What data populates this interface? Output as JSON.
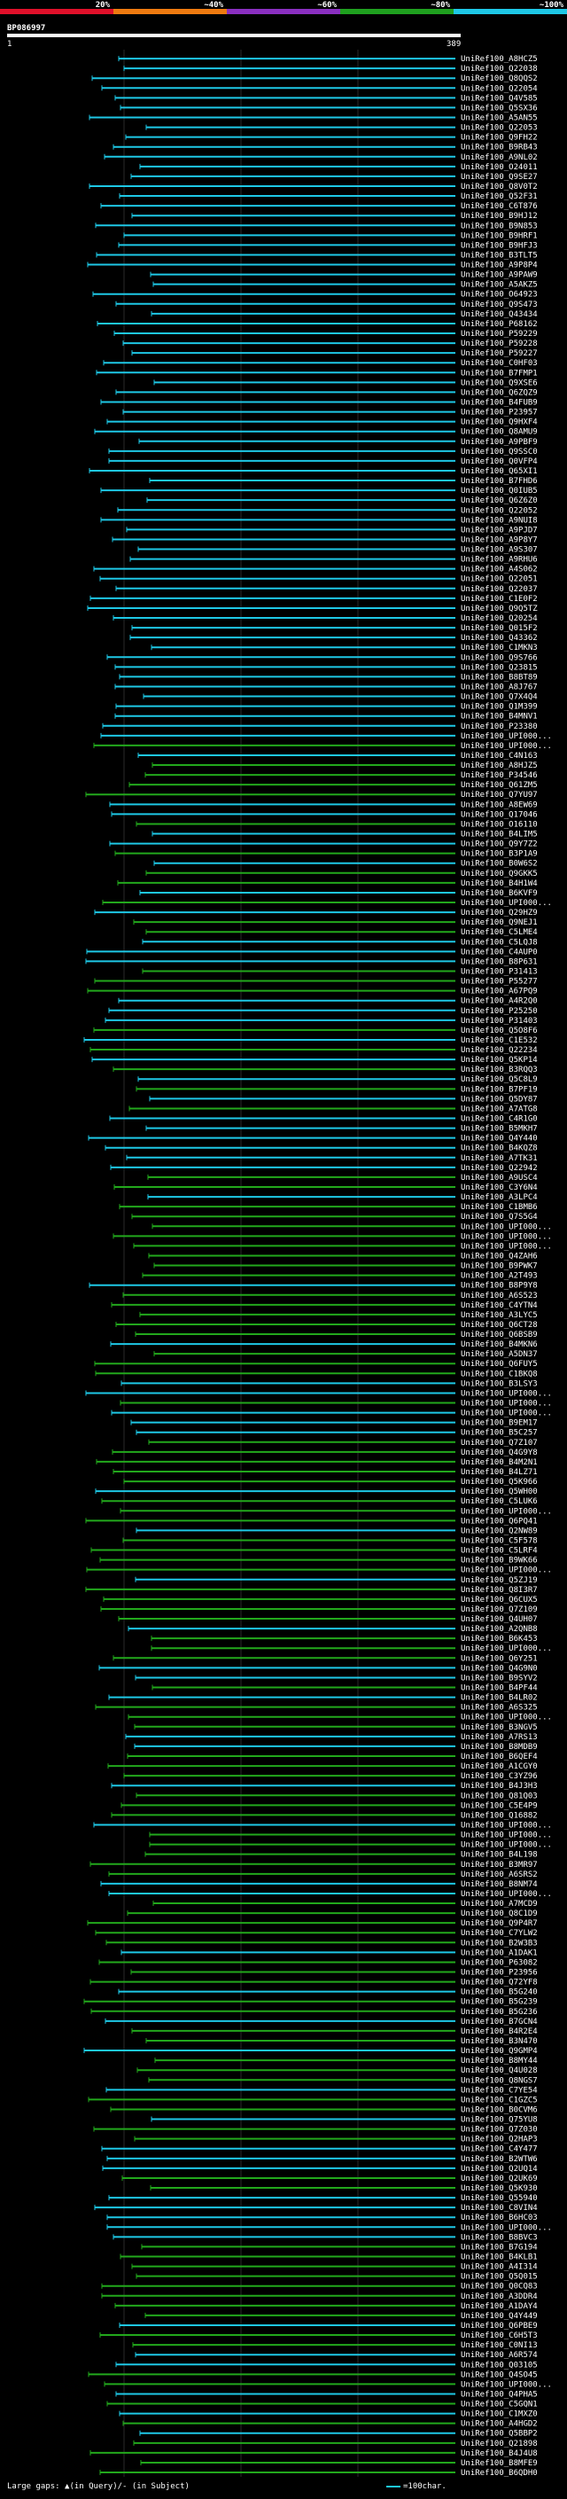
{
  "chart_data": {
    "type": "alignment-overview",
    "scale_labels": [
      "20%",
      "~40%",
      "~60%",
      "~80%",
      "~100%"
    ],
    "scale_colors": [
      "#e0102a",
      "#ee7a10",
      "#8a2fc0",
      "#1fa01f",
      "#1ec8e6"
    ],
    "query_id": "BP086997",
    "query_start": "1",
    "query_end": "389",
    "gap_legend": "Large gaps: ▲(in Query)/- (in Subject)",
    "length_legend": "=100char.",
    "hits": [
      "UniRef100_A8HCZ5",
      "UniRef100_Q22038",
      "UniRef100_Q8QQS2",
      "UniRef100_Q22054",
      "UniRef100_Q4V585",
      "UniRef100_Q5SX36",
      "UniRef100_A5AN55",
      "UniRef100_Q22053",
      "UniRef100_Q9FH22",
      "UniRef100_B9RB43",
      "UniRef100_A9NL02",
      "UniRef100_O24011",
      "UniRef100_Q9SE27",
      "UniRef100_Q8V0T2",
      "UniRef100_Q52F31",
      "UniRef100_C6T876",
      "UniRef100_B9HJ12",
      "UniRef100_B9N853",
      "UniRef100_B9HRF1",
      "UniRef100_B9HFJ3",
      "UniRef100_B3TLT5",
      "UniRef100_A9P8P4",
      "UniRef100_A9PAW9",
      "UniRef100_A5AKZ5",
      "UniRef100_O64923",
      "UniRef100_Q9S473",
      "UniRef100_Q43434",
      "UniRef100_P68162",
      "UniRef100_P59229",
      "UniRef100_P59228",
      "UniRef100_P59227",
      "UniRef100_C0HF03",
      "UniRef100_B7FMP1",
      "UniRef100_Q9XSE6",
      "UniRef100_Q6ZQZ9",
      "UniRef100_B4FUB9",
      "UniRef100_P23957",
      "UniRef100_Q9HXF4",
      "UniRef100_Q8AMU9",
      "UniRef100_A9PBF9",
      "UniRef100_Q9SSC0",
      "UniRef100_Q0VFP4",
      "UniRef100_Q65XI1",
      "UniRef100_B7FHD6",
      "UniRef100_Q0IUB5",
      "UniRef100_Q6Z6Z0",
      "UniRef100_Q22052",
      "UniRef100_A9NUI8",
      "UniRef100_A9PJD7",
      "UniRef100_A9P8Y7",
      "UniRef100_A9S307",
      "UniRef100_A9RHU6",
      "UniRef100_A4S062",
      "UniRef100_Q22051",
      "UniRef100_Q22037",
      "UniRef100_C1E0F2",
      "UniRef100_Q9Q5TZ",
      "UniRef100_Q20254",
      "UniRef100_Q015F2",
      "UniRef100_Q43362",
      "UniRef100_C1MKN3",
      "UniRef100_Q9S766",
      "UniRef100_Q23815",
      "UniRef100_B8BT89",
      "UniRef100_A8J767",
      "UniRef100_Q7X4Q4",
      "UniRef100_Q1M399",
      "UniRef100_B4MNV1",
      "UniRef100_P23380",
      "UniRef100_UPI000...",
      "UniRef100_UPI000...",
      "UniRef100_C4N163",
      "UniRef100_A8HJZ5",
      "UniRef100_P34546",
      "UniRef100_Q61ZM5",
      "UniRef100_Q7YU97",
      "UniRef100_A8EW69",
      "UniRef100_Q17046",
      "UniRef100_O16110",
      "UniRef100_B4LIM5",
      "UniRef100_Q9Y7Z2",
      "UniRef100_B3P1A9",
      "UniRef100_B0W6S2",
      "UniRef100_Q9GKK5",
      "UniRef100_B4H1W4",
      "UniRef100_B6KVF9",
      "UniRef100_UPI000...",
      "UniRef100_Q29HZ9",
      "UniRef100_Q9NEJ1",
      "UniRef100_C5LME4",
      "UniRef100_C5LQJ8",
      "UniRef100_C4AUP0",
      "UniRef100_B8P631",
      "UniRef100_P31413",
      "UniRef100_P55277",
      "UniRef100_A67PQ9",
      "UniRef100_A4R2Q0",
      "UniRef100_P25250",
      "UniRef100_P31403",
      "UniRef100_Q5O8F6",
      "UniRef100_C1E532",
      "UniRef100_Q22234",
      "UniRef100_Q5KP14",
      "UniRef100_B3RQQ3",
      "UniRef100_Q5C8L9",
      "UniRef100_B7PF19",
      "UniRef100_Q5DY87",
      "UniRef100_A7ATG8",
      "UniRef100_C4R1G0",
      "UniRef100_B5MKH7",
      "UniRef100_Q4Y440",
      "UniRef100_B4KQZ8",
      "UniRef100_A7TK31",
      "UniRef100_Q22942",
      "UniRef100_A9USC4",
      "UniRef100_C3Y6N4",
      "UniRef100_A3LPC4",
      "UniRef100_C1BMB6",
      "UniRef100_Q7S5G4",
      "UniRef100_UPI000...",
      "UniRef100_UPI000...",
      "UniRef100_UPI000...",
      "UniRef100_Q4ZAH6",
      "UniRef100_B9PWK7",
      "UniRef100_A2T493",
      "UniRef100_B8P9Y8",
      "UniRef100_A6S523",
      "UniRef100_C4YTN4",
      "UniRef100_A3LYC5",
      "UniRef100_Q6CT28",
      "UniRef100_Q6BSB9",
      "UniRef100_B4MKN6",
      "UniRef100_A5DN37",
      "UniRef100_Q6FUY5",
      "UniRef100_C1BKQ8",
      "UniRef100_B3LSY3",
      "UniRef100_UPI000...",
      "UniRef100_UPI000...",
      "UniRef100_UPI000...",
      "UniRef100_B9EM17",
      "UniRef100_B5C257",
      "UniRef100_Q7Z107",
      "UniRef100_Q4G9Y8",
      "UniRef100_B4M2N1",
      "UniRef100_B4LZ71",
      "UniRef100_Q5K966",
      "UniRef100_Q5WH00",
      "UniRef100_C5LUK6",
      "UniRef100_UPI000...",
      "UniRef100_Q6PQ41",
      "UniRef100_Q2NW89",
      "UniRef100_C5F578",
      "UniRef100_C5LRF4",
      "UniRef100_B9WK66",
      "UniRef100_UPI000...",
      "UniRef100_Q5ZJ19",
      "UniRef100_Q8I3R7",
      "UniRef100_Q6CUX5",
      "UniRef100_Q7Z109",
      "UniRef100_Q4UH07",
      "UniRef100_A2QNB8",
      "UniRef100_B6K453",
      "UniRef100_UPI000...",
      "UniRef100_Q6Y251",
      "UniRef100_Q4G9N0",
      "UniRef100_B9SYV2",
      "UniRef100_B4PF44",
      "UniRef100_B4LR02",
      "UniRef100_A6S325",
      "UniRef100_UPI000...",
      "UniRef100_B3NGV5",
      "UniRef100_A7RS13",
      "UniRef100_B8MDB9",
      "UniRef100_B6QEF4",
      "UniRef100_A1CGY0",
      "UniRef100_C3YZ96",
      "UniRef100_B4J3H3",
      "UniRef100_Q81Q03",
      "UniRef100_C5E4P9",
      "UniRef100_Q16882",
      "UniRef100_UPI000...",
      "UniRef100_UPI000...",
      "UniRef100_UPI000...",
      "UniRef100_B4L198",
      "UniRef100_B3MR97",
      "UniRef100_A6SRS2",
      "UniRef100_B8NM74",
      "UniRef100_UPI000...",
      "UniRef100_A7MCD9",
      "UniRef100_Q8C1D9",
      "UniRef100_Q9P4R7",
      "UniRef100_C7YLW2",
      "UniRef100_B2W3B3",
      "UniRef100_A1DAK1",
      "UniRef100_P63082",
      "UniRef100_P23956",
      "UniRef100_Q72YF8",
      "UniRef100_B5G240",
      "UniRef100_B5G239",
      "UniRef100_B5G236",
      "UniRef100_B7GCN4",
      "UniRef100_B4R2E4",
      "UniRef100_B3N470",
      "UniRef100_Q9GMP4",
      "UniRef100_B8MY44",
      "UniRef100_Q4U028",
      "UniRef100_Q8NGS7",
      "UniRef100_C7YE54",
      "UniRef100_C1GZC5",
      "UniRef100_B0CVM6",
      "UniRef100_Q75YU8",
      "UniRef100_Q7Z030",
      "UniRef100_Q2HAP3",
      "UniRef100_C4Y477",
      "UniRef100_B2WTW6",
      "UniRef100_Q2UQ14",
      "UniRef100_Q2UK69",
      "UniRef100_Q5K930",
      "UniRef100_Q55940",
      "UniRef100_C8VIN4",
      "UniRef100_B6HC03",
      "UniRef100_UPI000...",
      "UniRef100_B8BVC3",
      "UniRef100_B7G194",
      "UniRef100_B4KLB1",
      "UniRef100_A4I314",
      "UniRef100_Q5Q015",
      "UniRef100_Q0CQ83",
      "UniRef100_A3DDR4",
      "UniRef100_A1DAY4",
      "UniRef100_Q4Y449",
      "UniRef100_Q6PBE9",
      "UniRef100_C6H5T3",
      "UniRef100_C0NI13",
      "UniRef100_A6R574",
      "UniRef100_Q03105",
      "UniRef100_Q4SO45",
      "UniRef100_UPI000...",
      "UniRef100_Q4PHA5",
      "UniRef100_C5GQN1",
      "UniRef100_C1MXZ0",
      "UniRef100_A4HGD2",
      "UniRef100_Q5BBP2",
      "UniRef100_Q21898",
      "UniRef100_B4J4U8",
      "UniRef100_B8MFE9",
      "UniRef100_B6QDH0"
    ]
  }
}
